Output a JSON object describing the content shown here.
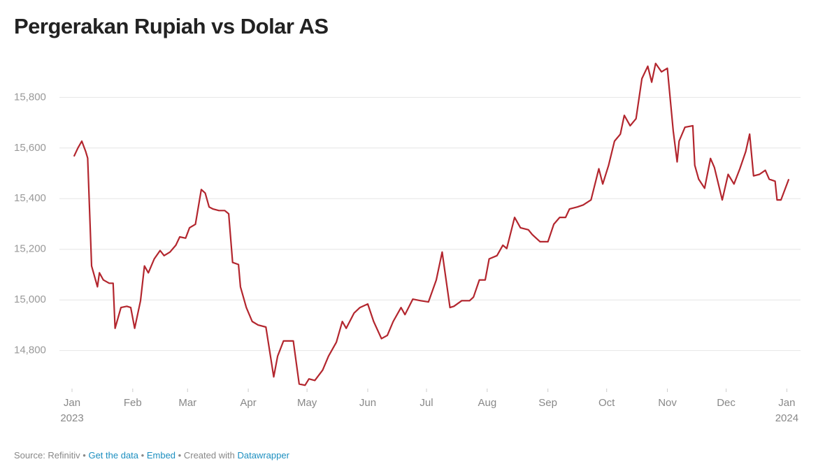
{
  "chart_data": {
    "type": "line",
    "title": "Pergerakan Rupiah vs Dolar AS",
    "x": [
      "2023-01-02",
      "2023-01-04",
      "2023-01-06",
      "2023-01-08",
      "2023-01-09",
      "2023-01-11",
      "2023-01-14",
      "2023-01-15",
      "2023-01-17",
      "2023-01-20",
      "2023-01-22",
      "2023-01-23",
      "2023-01-26",
      "2023-01-29",
      "2023-01-31",
      "2023-02-02",
      "2023-02-05",
      "2023-02-07",
      "2023-02-09",
      "2023-02-12",
      "2023-02-15",
      "2023-02-17",
      "2023-02-20",
      "2023-02-23",
      "2023-02-25",
      "2023-02-28",
      "2023-03-02",
      "2023-03-05",
      "2023-03-08",
      "2023-03-10",
      "2023-03-12",
      "2023-03-14",
      "2023-03-17",
      "2023-03-20",
      "2023-03-22",
      "2023-03-24",
      "2023-03-27",
      "2023-03-28",
      "2023-03-31",
      "2023-04-03",
      "2023-04-06",
      "2023-04-10",
      "2023-04-14",
      "2023-04-16",
      "2023-04-19",
      "2023-04-24",
      "2023-04-27",
      "2023-04-30",
      "2023-05-02",
      "2023-05-05",
      "2023-05-09",
      "2023-05-12",
      "2023-05-16",
      "2023-05-19",
      "2023-05-21",
      "2023-05-25",
      "2023-05-28",
      "2023-06-01",
      "2023-06-04",
      "2023-06-08",
      "2023-06-11",
      "2023-06-14",
      "2023-06-18",
      "2023-06-20",
      "2023-06-24",
      "2023-06-28",
      "2023-07-02",
      "2023-07-06",
      "2023-07-09",
      "2023-07-13",
      "2023-07-15",
      "2023-07-19",
      "2023-07-23",
      "2023-07-25",
      "2023-07-28",
      "2023-07-31",
      "2023-08-02",
      "2023-08-06",
      "2023-08-09",
      "2023-08-11",
      "2023-08-15",
      "2023-08-18",
      "2023-08-22",
      "2023-08-24",
      "2023-08-28",
      "2023-09-01",
      "2023-09-04",
      "2023-09-07",
      "2023-09-10",
      "2023-09-12",
      "2023-09-16",
      "2023-09-19",
      "2023-09-23",
      "2023-09-27",
      "2023-09-29",
      "2023-10-02",
      "2023-10-05",
      "2023-10-08",
      "2023-10-10",
      "2023-10-13",
      "2023-10-16",
      "2023-10-19",
      "2023-10-22",
      "2023-10-24",
      "2023-10-26",
      "2023-10-29",
      "2023-11-01",
      "2023-11-04",
      "2023-11-06",
      "2023-11-07",
      "2023-11-10",
      "2023-11-14",
      "2023-11-15",
      "2023-11-17",
      "2023-11-20",
      "2023-11-23",
      "2023-11-25",
      "2023-11-29",
      "2023-12-02",
      "2023-12-05",
      "2023-12-08",
      "2023-12-11",
      "2023-12-13",
      "2023-12-15",
      "2023-12-18",
      "2023-12-21",
      "2023-12-23",
      "2023-12-26",
      "2023-12-27",
      "2023-12-29",
      "2024-01-02"
    ],
    "values": [
      15567,
      15600,
      15627,
      15586,
      15560,
      15134,
      15052,
      15107,
      15079,
      15066,
      15066,
      14888,
      14970,
      14975,
      14970,
      14888,
      14997,
      15134,
      15107,
      15162,
      15195,
      15175,
      15189,
      15216,
      15249,
      15244,
      15285,
      15299,
      15436,
      15422,
      15367,
      15359,
      15353,
      15353,
      15340,
      15148,
      15140,
      15052,
      14970,
      14915,
      14901,
      14893,
      14696,
      14778,
      14838,
      14838,
      14668,
      14663,
      14688,
      14682,
      14723,
      14778,
      14833,
      14915,
      14888,
      14948,
      14970,
      14984,
      14915,
      14847,
      14860,
      14915,
      14970,
      14942,
      15003,
      14997,
      14992,
      15079,
      15189,
      14970,
      14975,
      14997,
      14997,
      15011,
      15079,
      15079,
      15162,
      15175,
      15216,
      15203,
      15326,
      15285,
      15277,
      15258,
      15230,
      15230,
      15299,
      15326,
      15326,
      15359,
      15367,
      15375,
      15395,
      15518,
      15458,
      15532,
      15627,
      15655,
      15729,
      15688,
      15716,
      15874,
      15923,
      15860,
      15934,
      15901,
      15915,
      15668,
      15545,
      15627,
      15682,
      15688,
      15532,
      15477,
      15441,
      15559,
      15523,
      15395,
      15496,
      15458,
      15518,
      15586,
      15655,
      15490,
      15496,
      15512,
      15477,
      15469,
      15395,
      15395,
      15477
    ],
    "color": "#b3262e",
    "xlim": [
      "2023-01-01",
      "2024-01-03"
    ],
    "xticks": [
      {
        "value": "2023-01-01",
        "label": "Jan\n2023"
      },
      {
        "value": "2023-02-01",
        "label": "Feb"
      },
      {
        "value": "2023-03-01",
        "label": "Mar"
      },
      {
        "value": "2023-04-01",
        "label": "Apr"
      },
      {
        "value": "2023-05-01",
        "label": "May"
      },
      {
        "value": "2023-06-01",
        "label": "Jun"
      },
      {
        "value": "2023-07-01",
        "label": "Jul"
      },
      {
        "value": "2023-08-01",
        "label": "Aug"
      },
      {
        "value": "2023-09-01",
        "label": "Sep"
      },
      {
        "value": "2023-10-01",
        "label": "Oct"
      },
      {
        "value": "2023-11-01",
        "label": "Nov"
      },
      {
        "value": "2023-12-01",
        "label": "Dec"
      },
      {
        "value": "2024-01-01",
        "label": "Jan\n2024"
      }
    ],
    "ylim": [
      14650,
      15950
    ],
    "yticks": [
      {
        "value": 14800,
        "label": "14,800"
      },
      {
        "value": 15000,
        "label": "15,000"
      },
      {
        "value": 15200,
        "label": "15,200"
      },
      {
        "value": 15400,
        "label": "15,400"
      },
      {
        "value": 15600,
        "label": "15,600"
      },
      {
        "value": 15800,
        "label": "15,800"
      }
    ],
    "grid": true,
    "footer": {
      "source": "Source: Refinitiv",
      "separator": "•",
      "links": [
        "Get the data",
        "Embed"
      ],
      "created": "Created with",
      "tool": "Datawrapper"
    }
  }
}
